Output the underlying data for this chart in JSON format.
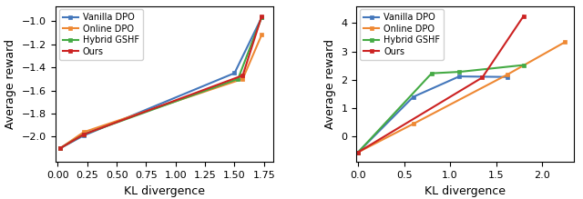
{
  "left": {
    "vanilla_dpo": {
      "kl": [
        0.02,
        0.22,
        1.5,
        1.73
      ],
      "reward": [
        -2.1,
        -1.99,
        -1.45,
        -0.97
      ]
    },
    "online_dpo": {
      "kl": [
        0.02,
        0.22,
        1.57,
        1.73
      ],
      "reward": [
        -2.1,
        -1.96,
        -1.5,
        -1.12
      ]
    },
    "hybrid_gshf": {
      "kl": [
        0.02,
        0.22,
        1.53,
        1.73
      ],
      "reward": [
        -2.1,
        -1.98,
        -1.5,
        -0.97
      ]
    },
    "ours": {
      "kl": [
        0.02,
        0.22,
        1.57,
        1.73
      ],
      "reward": [
        -2.1,
        -1.98,
        -1.47,
        -0.96
      ]
    },
    "xlim": [
      -0.02,
      1.83
    ],
    "ylim": [
      -2.22,
      -0.87
    ],
    "xticks": [
      0.0,
      0.25,
      0.5,
      0.75,
      1.0,
      1.25,
      1.5,
      1.75
    ],
    "yticks": [
      -2.0,
      -1.8,
      -1.6,
      -1.4,
      -1.2,
      -1.0
    ],
    "xlabel": "KL divergence",
    "ylabel": "Average reward"
  },
  "right": {
    "vanilla_dpo": {
      "kl": [
        0.0,
        0.6,
        1.1,
        1.62
      ],
      "reward": [
        -0.55,
        1.4,
        2.12,
        2.1
      ]
    },
    "online_dpo": {
      "kl": [
        0.0,
        0.6,
        1.62,
        2.25
      ],
      "reward": [
        -0.55,
        0.45,
        2.18,
        3.33
      ]
    },
    "hybrid_gshf": {
      "kl": [
        0.0,
        0.8,
        1.1,
        1.8
      ],
      "reward": [
        -0.55,
        2.23,
        2.28,
        2.52
      ]
    },
    "ours": {
      "kl": [
        0.0,
        1.35,
        1.8
      ],
      "reward": [
        -0.55,
        2.08,
        4.25
      ]
    },
    "xlim": [
      -0.02,
      2.35
    ],
    "ylim": [
      -0.9,
      4.6
    ],
    "xticks": [
      0.0,
      0.5,
      1.0,
      1.5,
      2.0
    ],
    "yticks": [
      0,
      1,
      2,
      3,
      4
    ],
    "xlabel": "KL divergence",
    "ylabel": "Average reward"
  },
  "colors": {
    "vanilla_dpo": "#4477bb",
    "online_dpo": "#ee8833",
    "hybrid_gshf": "#44aa44",
    "ours": "#cc2222"
  },
  "legend_labels": {
    "vanilla_dpo": "Vanilla DPO",
    "online_dpo": "Online DPO",
    "hybrid_gshf": "Hybrid GSHF",
    "ours": "Ours"
  },
  "marker": "s",
  "markersize": 3.5,
  "linewidth": 1.5
}
